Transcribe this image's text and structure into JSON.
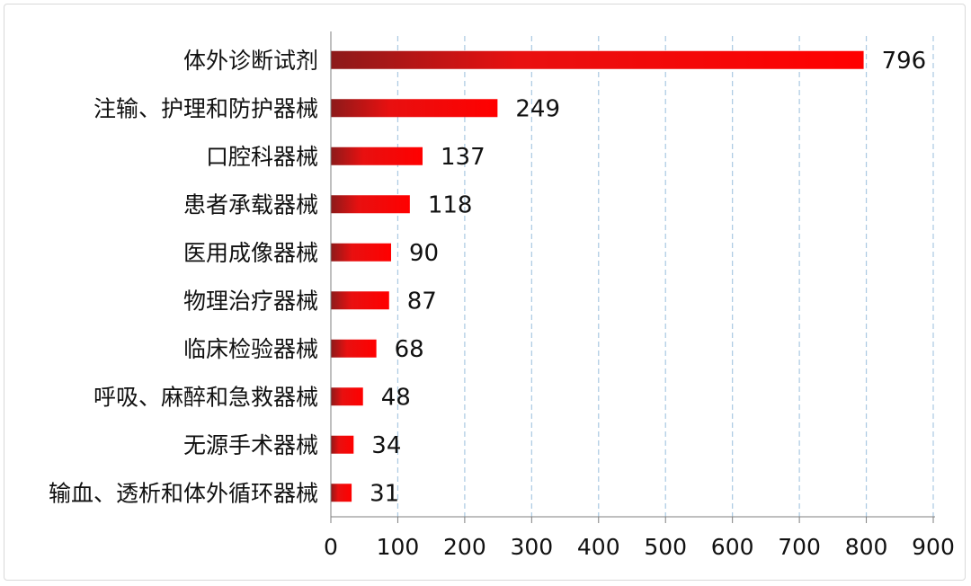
{
  "chart_data": {
    "type": "bar",
    "orientation": "horizontal",
    "title": "",
    "xlabel": "",
    "ylabel": "",
    "categories": [
      "体外诊断试剂",
      "注输、护理和防护器械",
      "口腔科器械",
      "患者承载器械",
      "医用成像器械",
      "物理治疗器械",
      "临床检验器械",
      "呼吸、麻醉和急救器械",
      "无源手术器械",
      "输血、透析和体外循环器械"
    ],
    "values": [
      796,
      249,
      137,
      118,
      90,
      87,
      68,
      48,
      34,
      31
    ],
    "xlim": [
      0,
      900
    ],
    "xticks": [
      0,
      100,
      200,
      300,
      400,
      500,
      600,
      700,
      800,
      900
    ],
    "grid": "vertical dashed",
    "legend": "none",
    "colors": {
      "bar_start": "#8c1a1a",
      "bar_mid": "#e81010",
      "bar_end": "#ff0000",
      "grid": "#a9c9e2",
      "axis": "#7f7f7f"
    }
  }
}
